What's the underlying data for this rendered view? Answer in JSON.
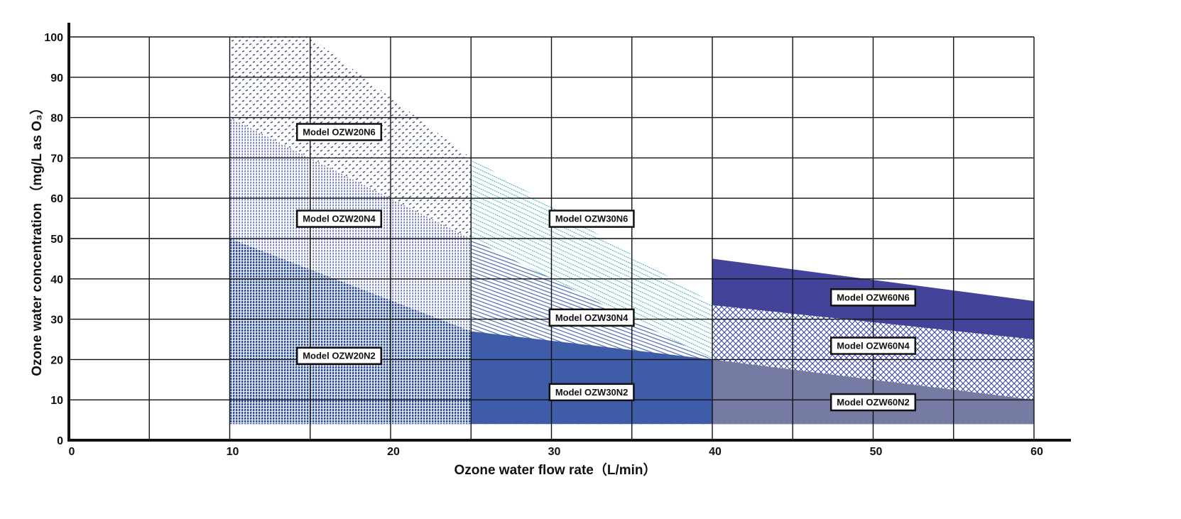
{
  "chart_data": {
    "type": "area",
    "xlabel": "Ozone water flow rate（L/min）",
    "ylabel": "Ozone water concentration （mg/L as O₃）",
    "xlim": [
      0,
      60
    ],
    "ylim": [
      0,
      100
    ],
    "x_ticks": [
      0,
      10,
      20,
      30,
      40,
      50,
      60
    ],
    "y_ticks": [
      0,
      10,
      20,
      30,
      40,
      50,
      60,
      70,
      80,
      90,
      100
    ],
    "grid": true,
    "baseline": 4,
    "series": [
      {
        "name": "Model OZW20N6",
        "pattern": "dots-dark",
        "color": "#3b4a7a",
        "x": [
          10,
          15,
          25
        ],
        "y": [
          100,
          100,
          70
        ],
        "label_at": [
          16.8,
          76.5
        ]
      },
      {
        "name": "Model OZW20N4",
        "pattern": "stripes-dotted",
        "color": "#3b4fa0",
        "x": [
          10,
          25
        ],
        "y": [
          80,
          50
        ],
        "label_at": [
          16.8,
          55
        ]
      },
      {
        "name": "Model OZW20N2",
        "pattern": "dense-dots",
        "color": "#2f4f9e",
        "x": [
          10,
          25
        ],
        "y": [
          50,
          27
        ],
        "label_at": [
          16.8,
          21
        ]
      },
      {
        "name": "Model OZW30N6",
        "pattern": "teal-hatch",
        "color": "#3aa9b5",
        "x": [
          25,
          40
        ],
        "y": [
          70,
          34
        ],
        "label_at": [
          32.5,
          55
        ]
      },
      {
        "name": "Model OZW30N4",
        "pattern": "blue-hatch",
        "color": "#4a6ab8",
        "x": [
          25,
          40
        ],
        "y": [
          50,
          20
        ],
        "label_at": [
          32.5,
          30.5
        ]
      },
      {
        "name": "Model OZW30N2",
        "pattern": "solid",
        "color": "#3f5ca8",
        "x": [
          25,
          40
        ],
        "y": [
          27,
          20
        ],
        "label_at": [
          32.5,
          12
        ]
      },
      {
        "name": "Model OZW60N6",
        "pattern": "solid",
        "color": "#43439a",
        "x": [
          40,
          60
        ],
        "y": [
          45,
          34.5
        ],
        "label_at": [
          50,
          35.5
        ]
      },
      {
        "name": "Model OZW60N4",
        "pattern": "crosshatch",
        "color": "#3c4a96",
        "x": [
          40,
          60
        ],
        "y": [
          33.5,
          25
        ],
        "label_at": [
          50,
          23.5
        ]
      },
      {
        "name": "Model OZW60N2",
        "pattern": "solid",
        "color": "#767ba3",
        "x": [
          40,
          60
        ],
        "y": [
          20,
          10
        ],
        "label_at": [
          50,
          9.5
        ]
      }
    ]
  }
}
